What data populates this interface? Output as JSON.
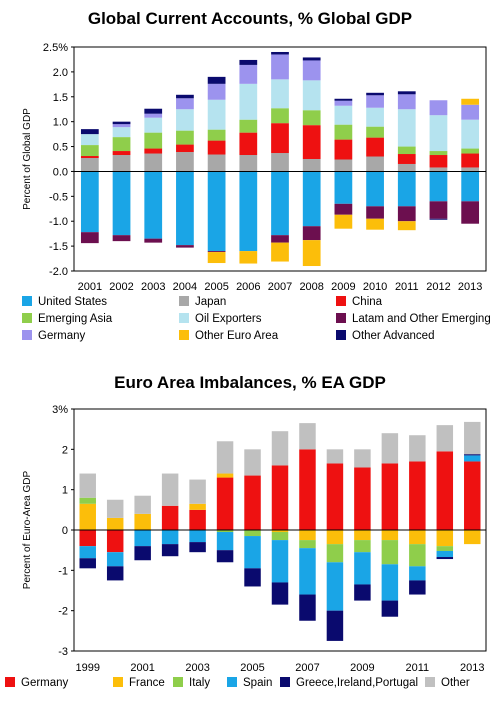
{
  "chart_data": [
    {
      "type": "bar",
      "stacked": true,
      "title": "Global Current Accounts, % Global GDP",
      "ylabel": "Percent of Global GDP",
      "xlabel": "",
      "ylim": [
        -2.0,
        2.5
      ],
      "yticks": [
        "2.5%",
        "2.0",
        "1.5",
        "1.0",
        "0.5",
        "0.0",
        "-0.5",
        "-1.0",
        "-1.5",
        "-2.0"
      ],
      "categories": [
        "2001",
        "2002",
        "2003",
        "2004",
        "2005",
        "2006",
        "2007",
        "2008",
        "2009",
        "2010",
        "2011",
        "2012",
        "2013"
      ],
      "legend_position": "bottom",
      "series": [
        {
          "name": "United States",
          "color": "#1aa5e6",
          "values": [
            -1.22,
            -1.28,
            -1.35,
            -1.48,
            -1.6,
            -1.6,
            -1.28,
            -1.1,
            -0.65,
            -0.7,
            -0.7,
            -0.6,
            -0.6
          ]
        },
        {
          "name": "Japan",
          "color": "#a8a8a8",
          "values": [
            0.27,
            0.33,
            0.36,
            0.39,
            0.34,
            0.33,
            0.37,
            0.25,
            0.24,
            0.3,
            0.15,
            0.08,
            0.08
          ]
        },
        {
          "name": "China",
          "color": "#ee1111",
          "values": [
            0.04,
            0.08,
            0.1,
            0.15,
            0.28,
            0.45,
            0.6,
            0.68,
            0.4,
            0.38,
            0.2,
            0.25,
            0.28
          ]
        },
        {
          "name": "Emerging Asia",
          "color": "#8fce4b",
          "values": [
            0.22,
            0.28,
            0.32,
            0.28,
            0.22,
            0.26,
            0.3,
            0.3,
            0.3,
            0.22,
            0.15,
            0.08,
            0.1
          ]
        },
        {
          "name": "Oil Exporters",
          "color": "#b5e3ef",
          "values": [
            0.22,
            0.2,
            0.3,
            0.43,
            0.6,
            0.72,
            0.58,
            0.6,
            0.38,
            0.38,
            0.75,
            0.72,
            0.58
          ]
        },
        {
          "name": "Latam and Other Emerging",
          "color": "#6c0f4f",
          "values": [
            -0.22,
            -0.12,
            -0.08,
            -0.05,
            -0.02,
            0.0,
            -0.15,
            -0.28,
            -0.22,
            -0.25,
            -0.3,
            -0.35,
            -0.45
          ]
        },
        {
          "name": "Germany",
          "color": "#9c93ee",
          "values": [
            0.0,
            0.06,
            0.08,
            0.22,
            0.32,
            0.38,
            0.5,
            0.4,
            0.1,
            0.25,
            0.3,
            0.3,
            0.3
          ]
        },
        {
          "name": "Other Euro Area",
          "color": "#fcbe0a",
          "values": [
            0.0,
            0.0,
            0.0,
            0.0,
            -0.22,
            -0.25,
            -0.38,
            -0.52,
            -0.28,
            -0.22,
            -0.18,
            0.0,
            0.12
          ]
        },
        {
          "name": "Other Advanced",
          "color": "#0a0a6e",
          "values": [
            0.1,
            0.05,
            0.1,
            0.07,
            0.14,
            0.1,
            0.05,
            0.06,
            0.04,
            0.05,
            0.06,
            -0.02,
            0.0
          ]
        }
      ]
    },
    {
      "type": "bar",
      "stacked": true,
      "title": "Euro Area Imbalances, % EA GDP",
      "ylabel": "Percent of Euro-Area GDP",
      "xlabel": "",
      "ylim": [
        -3,
        3
      ],
      "yticks": [
        "3%",
        "2",
        "1",
        "0",
        "-1",
        "-2",
        "-3"
      ],
      "categories": [
        "1999",
        "2000",
        "2001",
        "2002",
        "2003",
        "2004",
        "2005",
        "2006",
        "2007",
        "2008",
        "2009",
        "2010",
        "2011",
        "2012",
        "2013"
      ],
      "xtick_labels": [
        "1999",
        "",
        "2001",
        "",
        "2003",
        "",
        "2005",
        "",
        "2007",
        "",
        "2009",
        "",
        "2011",
        "",
        "2013"
      ],
      "legend_position": "bottom",
      "series": [
        {
          "name": "Germany",
          "color": "#ee1111",
          "values": [
            -0.4,
            -0.55,
            0.0,
            0.6,
            0.5,
            1.3,
            1.35,
            1.6,
            2.0,
            1.65,
            1.55,
            1.65,
            1.7,
            1.95,
            1.7
          ]
        },
        {
          "name": "France",
          "color": "#fcbe0a",
          "values": [
            0.65,
            0.3,
            0.4,
            0.0,
            0.15,
            0.1,
            0.0,
            -0.05,
            -0.25,
            -0.35,
            -0.25,
            -0.25,
            -0.35,
            -0.4,
            -0.35
          ]
        },
        {
          "name": "Italy",
          "color": "#8fce4b",
          "values": [
            0.15,
            0.0,
            0.0,
            0.0,
            0.0,
            -0.05,
            -0.15,
            -0.2,
            -0.2,
            -0.45,
            -0.3,
            -0.6,
            -0.55,
            -0.12,
            0.0
          ]
        },
        {
          "name": "Spain",
          "color": "#1aa5e6",
          "values": [
            -0.3,
            -0.35,
            -0.4,
            -0.35,
            -0.3,
            -0.45,
            -0.8,
            -1.05,
            -1.15,
            -1.2,
            -0.8,
            -0.9,
            -0.35,
            -0.15,
            0.15
          ]
        },
        {
          "name": "Greece,Ireland,Portugal",
          "color": "#0a0a6e",
          "values": [
            -0.25,
            -0.35,
            -0.35,
            -0.3,
            -0.25,
            -0.3,
            -0.45,
            -0.55,
            -0.65,
            -0.75,
            -0.4,
            -0.4,
            -0.35,
            -0.05,
            0.03
          ]
        },
        {
          "name": "Other",
          "color": "#c0c0c0",
          "values": [
            0.6,
            0.45,
            0.45,
            0.8,
            0.6,
            0.8,
            0.65,
            0.85,
            0.65,
            0.35,
            0.45,
            0.75,
            0.65,
            0.65,
            0.8
          ]
        }
      ]
    }
  ]
}
